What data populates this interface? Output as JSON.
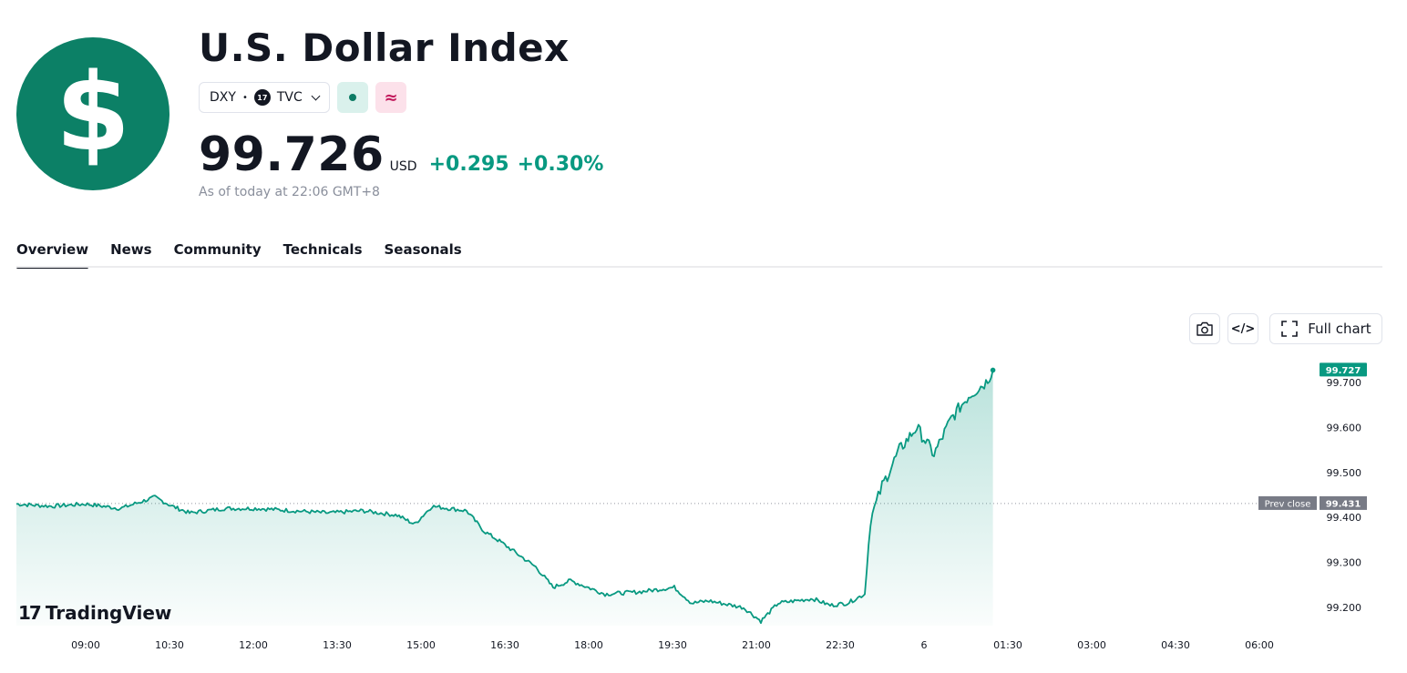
{
  "header": {
    "logo_glyph": "$",
    "title": "U.S. Dollar Index",
    "symbol": "DXY",
    "separator": "•",
    "exchange_badge": "17",
    "exchange": "TVC",
    "status_market_icon": "market-open-dot-icon",
    "status_delay_glyph": "≈"
  },
  "quote": {
    "price": "99.726",
    "currency": "USD",
    "change": "+0.295",
    "change_percent": "+0.30%",
    "as_of": "As of today at 22:06 GMT+8"
  },
  "tabs": [
    {
      "label": "Overview",
      "active": true
    },
    {
      "label": "News",
      "active": false
    },
    {
      "label": "Community",
      "active": false
    },
    {
      "label": "Technicals",
      "active": false
    },
    {
      "label": "Seasonals",
      "active": false
    }
  ],
  "toolbar": {
    "camera_icon": "camera-icon",
    "embed_label": "</>",
    "full_chart_label": "Full chart"
  },
  "colors": {
    "brand": "#0c8066",
    "positive": "#089981",
    "line": "#089981",
    "prev_close_label_bg": "#787b86"
  },
  "chart_data": {
    "type": "area",
    "x_tick_labels": [
      "09:00",
      "10:30",
      "12:00",
      "13:30",
      "15:00",
      "16:30",
      "18:00",
      "19:30",
      "21:00",
      "22:30",
      "6",
      "01:30",
      "03:00",
      "04:30",
      "06:00"
    ],
    "y_tick_labels": [
      "99.700",
      "99.600",
      "99.500",
      "99.400",
      "99.300",
      "99.200"
    ],
    "y_range": [
      99.16,
      99.74
    ],
    "last_price_label": "99.727",
    "prev_close": 99.431,
    "prev_close_label": "Prev close",
    "prev_close_value_label": "99.431",
    "series": [
      {
        "x": [
          "08:00",
          "08:30",
          "09:00",
          "09:30",
          "10:00",
          "10:15",
          "10:30",
          "11:00",
          "11:30",
          "12:00",
          "12:30",
          "13:00",
          "13:30",
          "13:45",
          "14:00",
          "14:30",
          "14:45",
          "15:00",
          "15:30",
          "15:45",
          "16:00",
          "16:30",
          "17:00",
          "17:30",
          "17:45",
          "18:00",
          "18:30",
          "18:45",
          "19:00",
          "19:30",
          "19:45",
          "20:00",
          "20:15",
          "20:20",
          "20:30",
          "20:45",
          "21:00",
          "21:15",
          "21:30",
          "21:45",
          "22:00",
          "22:06"
        ],
        "values": [
          99.43,
          99.425,
          99.43,
          99.42,
          99.445,
          99.425,
          99.41,
          99.42,
          99.42,
          99.415,
          99.41,
          99.415,
          99.405,
          99.385,
          99.425,
          99.415,
          99.37,
          99.345,
          99.29,
          99.245,
          99.26,
          99.23,
          99.235,
          99.245,
          99.21,
          99.215,
          99.2,
          99.17,
          99.21,
          99.22,
          99.205,
          99.21,
          99.23,
          99.395,
          99.47,
          99.55,
          99.6,
          99.54,
          99.62,
          99.67,
          99.7,
          99.727
        ]
      }
    ]
  },
  "branding": {
    "logo_glyph": "17",
    "name": "TradingView"
  }
}
